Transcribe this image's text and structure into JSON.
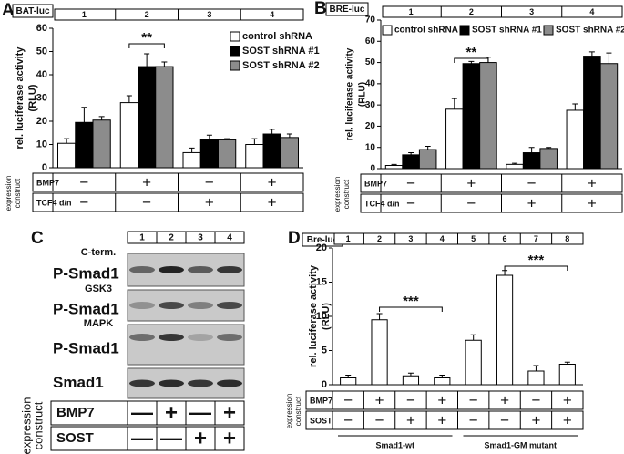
{
  "chart_data": [
    {
      "type": "bar",
      "panel": "A",
      "reporter": "BAT-luc",
      "categories": [
        "1",
        "2",
        "3",
        "4"
      ],
      "ylabel": [
        "rel. luciferase activity",
        "(RLU)"
      ],
      "ylim": [
        0,
        60
      ],
      "yticks": [
        0,
        10,
        20,
        30,
        40,
        50,
        60
      ],
      "series": [
        {
          "name": "control shRNA",
          "color": "#ffffff",
          "values": [
            10.5,
            28,
            6.5,
            10
          ],
          "errors": [
            2,
            3,
            2,
            2.5
          ]
        },
        {
          "name": "SOST shRNA #1",
          "color": "#000000",
          "values": [
            19.5,
            43.5,
            12,
            14.5
          ],
          "errors": [
            6.5,
            5.5,
            2,
            2
          ]
        },
        {
          "name": "SOST shRNA #2",
          "color": "#8c8c8c",
          "values": [
            20.5,
            43.5,
            12,
            13
          ],
          "errors": [
            1.5,
            2,
            0.5,
            1.5
          ]
        }
      ],
      "annotations": [
        "**"
      ],
      "conditions": [
        {
          "label": "BMP7",
          "values": [
            "−",
            "+",
            "−",
            "+"
          ]
        },
        {
          "label": "TCF4 d/n",
          "values": [
            "−",
            "−",
            "+",
            "+"
          ]
        }
      ],
      "side_label": [
        "expression",
        "construct"
      ]
    },
    {
      "type": "bar",
      "panel": "B",
      "reporter": "BRE-luc",
      "categories": [
        "1",
        "2",
        "3",
        "4"
      ],
      "ylabel": [
        "rel. luciferase activity",
        "(RLU)"
      ],
      "ylim": [
        0,
        70
      ],
      "yticks": [
        0,
        10,
        20,
        30,
        40,
        50,
        60,
        70
      ],
      "series": [
        {
          "name": "control shRNA",
          "color": "#ffffff",
          "values": [
            1.5,
            28,
            2,
            27.5
          ],
          "errors": [
            0.5,
            5,
            0.5,
            3
          ]
        },
        {
          "name": "SOST shRNA #1",
          "color": "#000000",
          "values": [
            6.5,
            49.5,
            7.5,
            53
          ],
          "errors": [
            1,
            1,
            2.5,
            2
          ]
        },
        {
          "name": "SOST shRNA #2",
          "color": "#8c8c8c",
          "values": [
            9,
            50,
            9.5,
            49.5
          ],
          "errors": [
            1.5,
            2.5,
            0.5,
            5
          ]
        }
      ],
      "annotations": [
        "**"
      ],
      "conditions": [
        {
          "label": "BMP7",
          "values": [
            "−",
            "+",
            "−",
            "+"
          ]
        },
        {
          "label": "TCF4 d/n",
          "values": [
            "−",
            "−",
            "+",
            "+"
          ]
        }
      ],
      "side_label": [
        "expression",
        "construct"
      ]
    },
    {
      "type": "bar",
      "panel": "D",
      "reporter": "Bre-luc",
      "categories": [
        "1",
        "2",
        "3",
        "4",
        "5",
        "6",
        "7",
        "8"
      ],
      "ylabel": [
        "rel. luciferase activity",
        "(RLU)"
      ],
      "ylim": [
        0,
        20
      ],
      "yticks": [
        0,
        5,
        10,
        15,
        20
      ],
      "series": [
        {
          "color": "#ffffff",
          "values": [
            1,
            9.5,
            1.3,
            1,
            6.5,
            16,
            2,
            3
          ],
          "errors": [
            0.4,
            0.9,
            0.4,
            0.4,
            0.8,
            0.7,
            0.8,
            0.3
          ]
        }
      ],
      "annotations": [
        "***",
        "***"
      ],
      "conditions": [
        {
          "label": "BMP7",
          "values": [
            "−",
            "+",
            "−",
            "+",
            "−",
            "+",
            "−",
            "+"
          ]
        },
        {
          "label": "SOST",
          "values": [
            "−",
            "−",
            "+",
            "+",
            "−",
            "−",
            "+",
            "+"
          ]
        }
      ],
      "groups": [
        "Smad1-wt",
        "Smad1-GM mutant"
      ],
      "side_label": [
        "expression",
        "construct"
      ]
    }
  ],
  "blot": {
    "panel": "C",
    "lanes": [
      "1",
      "2",
      "3",
      "4"
    ],
    "rows": [
      {
        "sublabel": "C-term.",
        "label": "P-Smad1"
      },
      {
        "sublabel": "GSK3",
        "label": "P-Smad1"
      },
      {
        "sublabel": "MAPK",
        "label": "P-Smad1"
      },
      {
        "label": "Smad1"
      }
    ],
    "conditions": [
      {
        "label": "BMP7",
        "values": [
          "—",
          "+",
          "—",
          "+"
        ]
      },
      {
        "label": "SOST",
        "values": [
          "—",
          "—",
          "+",
          "+"
        ]
      }
    ],
    "side_label": [
      "expression",
      "construct"
    ]
  }
}
